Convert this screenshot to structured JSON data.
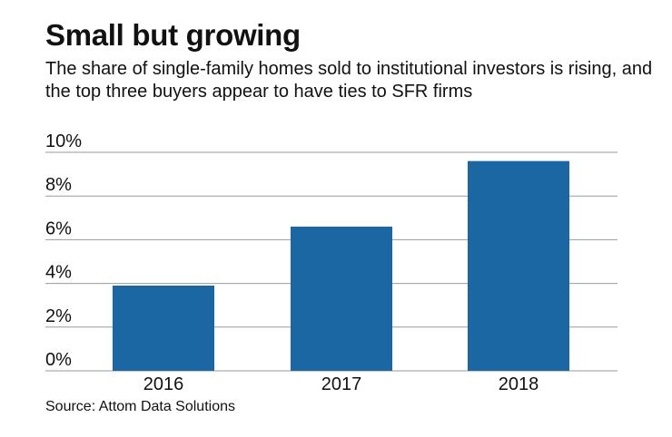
{
  "header": {
    "title": "Small but growing",
    "subtitle": "The share of single-family homes sold to institutional investors is rising, and the top three buyers appear to have ties to SFR firms"
  },
  "chart_data": {
    "type": "bar",
    "title": "Small but growing",
    "subtitle": "The share of single-family homes sold to institutional investors is rising, and the top three buyers appear to have ties to SFR firms",
    "categories": [
      "2016",
      "2017",
      "2018"
    ],
    "values": [
      3.9,
      6.6,
      9.6
    ],
    "xlabel": "",
    "ylabel": "",
    "ylim": [
      0,
      10
    ],
    "yticks": [
      0,
      2,
      4,
      6,
      8,
      10
    ],
    "ytick_labels": [
      "0%",
      "2%",
      "4%",
      "6%",
      "8%",
      "10%"
    ],
    "grid": true,
    "bar_color": "#1b67a3",
    "grid_color": "#9a9a9a"
  },
  "footer": {
    "source": "Source: Attom Data Solutions"
  }
}
